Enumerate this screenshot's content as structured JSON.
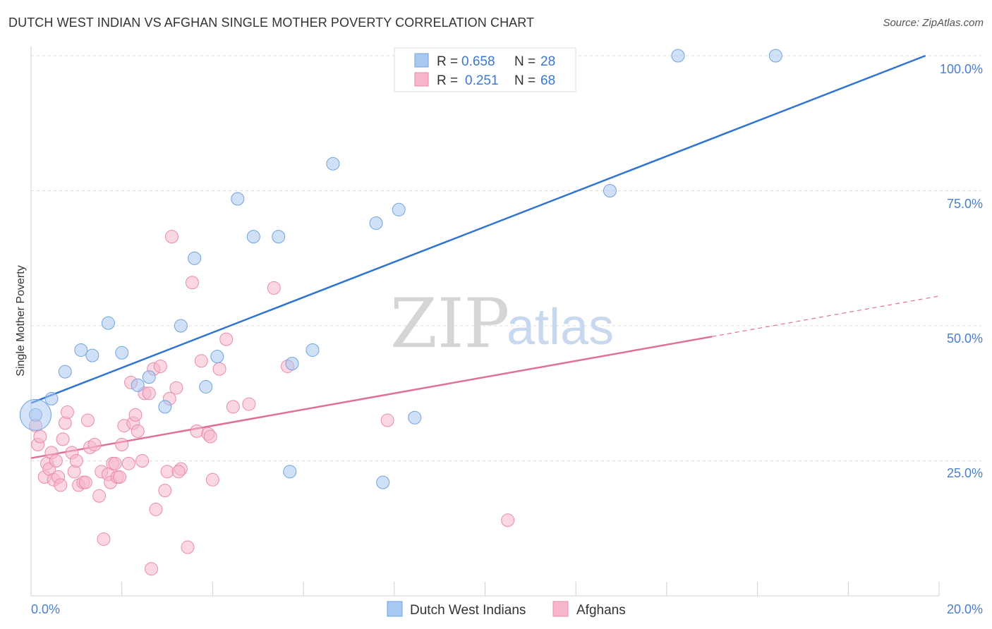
{
  "header": {
    "title": "DUTCH WEST INDIAN VS AFGHAN SINGLE MOTHER POVERTY CORRELATION CHART",
    "source": "Source: ZipAtlas.com"
  },
  "watermark": {
    "zip": "ZIP",
    "atlas": "atlas"
  },
  "legend": {
    "rows": [
      {
        "r_label": "R =",
        "r_value": "0.658",
        "n_label": "N =",
        "n_value": "28",
        "color": "#a9c8f0"
      },
      {
        "r_label": "R =",
        "r_value": "0.251",
        "n_label": "N =",
        "n_value": "68",
        "color": "#f6b6cb"
      }
    ]
  },
  "bottom_legend": {
    "items": [
      {
        "label": "Dutch West Indians",
        "color": "#a9c8f0"
      },
      {
        "label": "Afghans",
        "color": "#f6b6cb"
      }
    ]
  },
  "chart_data": {
    "type": "scatter",
    "title": "DUTCH WEST INDIAN VS AFGHAN SINGLE MOTHER POVERTY CORRELATION CHART",
    "xlabel": "",
    "ylabel": "Single Mother Poverty",
    "xlim": [
      0,
      20
    ],
    "ylim": [
      0,
      100
    ],
    "x_tick_labels": [
      "0.0%",
      "20.0%"
    ],
    "y_tick_labels": [
      "25.0%",
      "50.0%",
      "75.0%",
      "100.0%"
    ],
    "y_ticks": [
      25,
      50,
      75,
      100
    ],
    "series": [
      {
        "name": "Dutch West Indians",
        "color": "#a9c8f0",
        "stroke": "#6fa3e0",
        "trend_color": "#2f74d0",
        "trend": {
          "x0": 0,
          "y0": 35.7,
          "x1": 19.7,
          "y1": 100,
          "dashed_from": null
        },
        "points": [
          [
            0.1,
            33.5
          ],
          [
            0.45,
            36.5
          ],
          [
            0.75,
            41.5
          ],
          [
            1.1,
            45.5
          ],
          [
            1.35,
            44.5
          ],
          [
            1.7,
            50.5
          ],
          [
            2.0,
            45.0
          ],
          [
            2.35,
            39.0
          ],
          [
            2.6,
            40.5
          ],
          [
            2.95,
            35.0
          ],
          [
            3.3,
            50.0
          ],
          [
            3.6,
            62.5
          ],
          [
            3.85,
            38.7
          ],
          [
            4.1,
            44.3
          ],
          [
            4.55,
            73.5
          ],
          [
            4.9,
            66.5
          ],
          [
            5.45,
            66.5
          ],
          [
            5.7,
            23.0
          ],
          [
            5.75,
            43.0
          ],
          [
            6.2,
            45.5
          ],
          [
            6.65,
            80.0
          ],
          [
            7.6,
            69.0
          ],
          [
            7.75,
            21.0
          ],
          [
            8.1,
            71.5
          ],
          [
            8.45,
            33.0
          ],
          [
            12.75,
            75.0
          ],
          [
            14.25,
            100.0
          ],
          [
            16.4,
            100.0
          ]
        ],
        "big_point": [
          0.1,
          33.5
        ]
      },
      {
        "name": "Afghans",
        "color": "#f6b6cb",
        "stroke": "#ea8aab",
        "trend_color": "#e0709a",
        "trend": {
          "x0": 0,
          "y0": 25.5,
          "x1": 20.0,
          "y1": 55.5,
          "dashed_from": 15.0
        },
        "points": [
          [
            0.1,
            31.5
          ],
          [
            0.15,
            28.0
          ],
          [
            0.2,
            29.5
          ],
          [
            0.3,
            22.0
          ],
          [
            0.35,
            24.5
          ],
          [
            0.4,
            23.5
          ],
          [
            0.45,
            26.5
          ],
          [
            0.5,
            21.5
          ],
          [
            0.6,
            22.0
          ],
          [
            0.65,
            20.5
          ],
          [
            0.7,
            29.0
          ],
          [
            0.75,
            32.0
          ],
          [
            0.8,
            34.0
          ],
          [
            0.9,
            26.5
          ],
          [
            0.95,
            23.0
          ],
          [
            1.0,
            25.0
          ],
          [
            1.05,
            20.5
          ],
          [
            1.15,
            21.0
          ],
          [
            1.2,
            21.0
          ],
          [
            1.25,
            32.5
          ],
          [
            1.3,
            27.5
          ],
          [
            1.4,
            28.0
          ],
          [
            1.5,
            18.5
          ],
          [
            1.55,
            23.0
          ],
          [
            1.6,
            10.5
          ],
          [
            1.7,
            22.5
          ],
          [
            1.75,
            21.0
          ],
          [
            1.8,
            24.5
          ],
          [
            1.85,
            24.5
          ],
          [
            1.9,
            22.0
          ],
          [
            2.0,
            28.0
          ],
          [
            2.05,
            31.5
          ],
          [
            2.15,
            24.5
          ],
          [
            2.2,
            39.5
          ],
          [
            2.25,
            32.0
          ],
          [
            2.3,
            33.5
          ],
          [
            2.35,
            30.5
          ],
          [
            2.45,
            25.0
          ],
          [
            2.5,
            37.5
          ],
          [
            2.6,
            37.5
          ],
          [
            2.65,
            5.0
          ],
          [
            2.7,
            42.0
          ],
          [
            2.75,
            16.0
          ],
          [
            2.85,
            42.5
          ],
          [
            2.95,
            19.5
          ],
          [
            3.0,
            23.0
          ],
          [
            3.05,
            36.5
          ],
          [
            3.1,
            66.5
          ],
          [
            3.2,
            38.5
          ],
          [
            3.3,
            23.5
          ],
          [
            3.45,
            9.0
          ],
          [
            3.55,
            58.0
          ],
          [
            3.65,
            30.5
          ],
          [
            3.75,
            43.5
          ],
          [
            3.9,
            30.0
          ],
          [
            3.95,
            29.5
          ],
          [
            4.0,
            21.5
          ],
          [
            4.15,
            42.0
          ],
          [
            4.3,
            47.5
          ],
          [
            4.45,
            35.0
          ],
          [
            4.8,
            35.5
          ],
          [
            5.35,
            57.0
          ],
          [
            5.65,
            42.5
          ],
          [
            7.85,
            32.5
          ],
          [
            10.5,
            14.0
          ],
          [
            0.55,
            25.0
          ],
          [
            1.95,
            22.0
          ],
          [
            3.25,
            23.0
          ]
        ]
      }
    ]
  }
}
